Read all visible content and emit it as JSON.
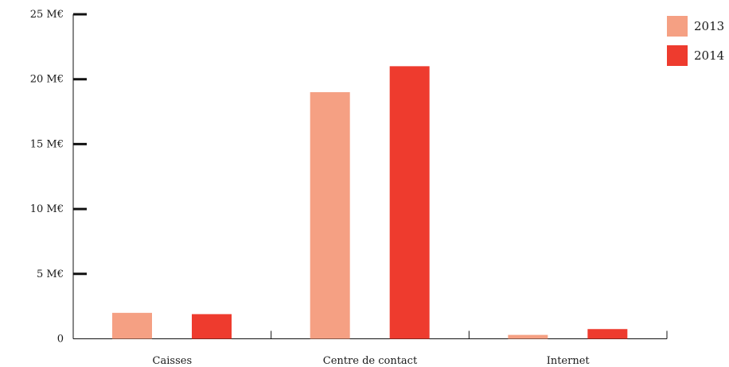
{
  "chart_data": {
    "type": "bar",
    "title": "",
    "xlabel": "",
    "ylabel": "",
    "categories": [
      "Caisses",
      "Centre de contact",
      "Internet"
    ],
    "series": [
      {
        "name": "2013",
        "values": [
          2.0,
          19.0,
          0.3
        ],
        "color": "#F5A083"
      },
      {
        "name": "2014",
        "values": [
          1.9,
          21.0,
          0.75
        ],
        "color": "#EE3B2E"
      }
    ],
    "ylim": [
      0,
      25
    ],
    "yticks": [
      0,
      5,
      10,
      15,
      20,
      25
    ],
    "ytick_labels": [
      "0",
      "5 M€",
      "10 M€",
      "15 M€",
      "20 M€",
      "25 M€"
    ],
    "grid": false,
    "legend_position": "top-right"
  }
}
